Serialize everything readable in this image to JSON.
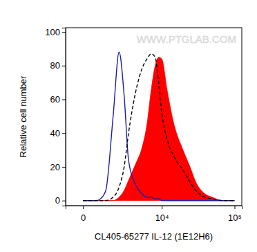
{
  "chart_data": {
    "type": "histogram",
    "x_label": "CL405-65277 IL-12 (1E12H6)",
    "y_label": "Relative cell number",
    "annotations": [
      "WWW.PTGLAB.COM"
    ],
    "log": "x",
    "x": [
      0,
      300,
      500,
      700,
      1000,
      1500,
      2000,
      2500,
      3000,
      4000,
      5000,
      6000,
      7000,
      8000,
      9000,
      10000,
      12000,
      15000,
      20000,
      25000,
      30000,
      40000,
      50000,
      70000,
      100000
    ],
    "series": [
      {
        "color": "#1c1ca8",
        "type": "line",
        "line_style": "solid",
        "values": [
          0,
          0,
          0,
          1,
          6,
          50,
          88,
          62,
          24,
          9,
          4,
          2,
          2,
          1,
          1,
          0,
          0,
          0,
          0,
          0,
          0,
          0,
          0,
          0,
          0
        ]
      },
      {
        "color": "#000000",
        "type": "line",
        "line_style": "dashed",
        "values": [
          0,
          0,
          0,
          0,
          0,
          2,
          8,
          20,
          40,
          65,
          78,
          84,
          87,
          85,
          70,
          52,
          36,
          26,
          18,
          11,
          6,
          2,
          1,
          0,
          0
        ]
      },
      {
        "color": "#ff0000",
        "type": "area",
        "line_style": "solid",
        "values": [
          0,
          0,
          0,
          0,
          0,
          0,
          2,
          6,
          12,
          22,
          31,
          45,
          66,
          80,
          85,
          84,
          65,
          45,
          30,
          20,
          11,
          4,
          2,
          0,
          0
        ]
      }
    ],
    "xlim": [
      -700,
      125000
    ],
    "xticks": [
      0,
      {
        "value": 10000,
        "label": "10⁴"
      },
      {
        "value": 100000,
        "label": "10⁵"
      }
    ],
    "ylim": [
      -3,
      102.5
    ],
    "yticks": [
      0,
      20,
      40,
      60,
      80,
      100
    ],
    "grid": false
  }
}
